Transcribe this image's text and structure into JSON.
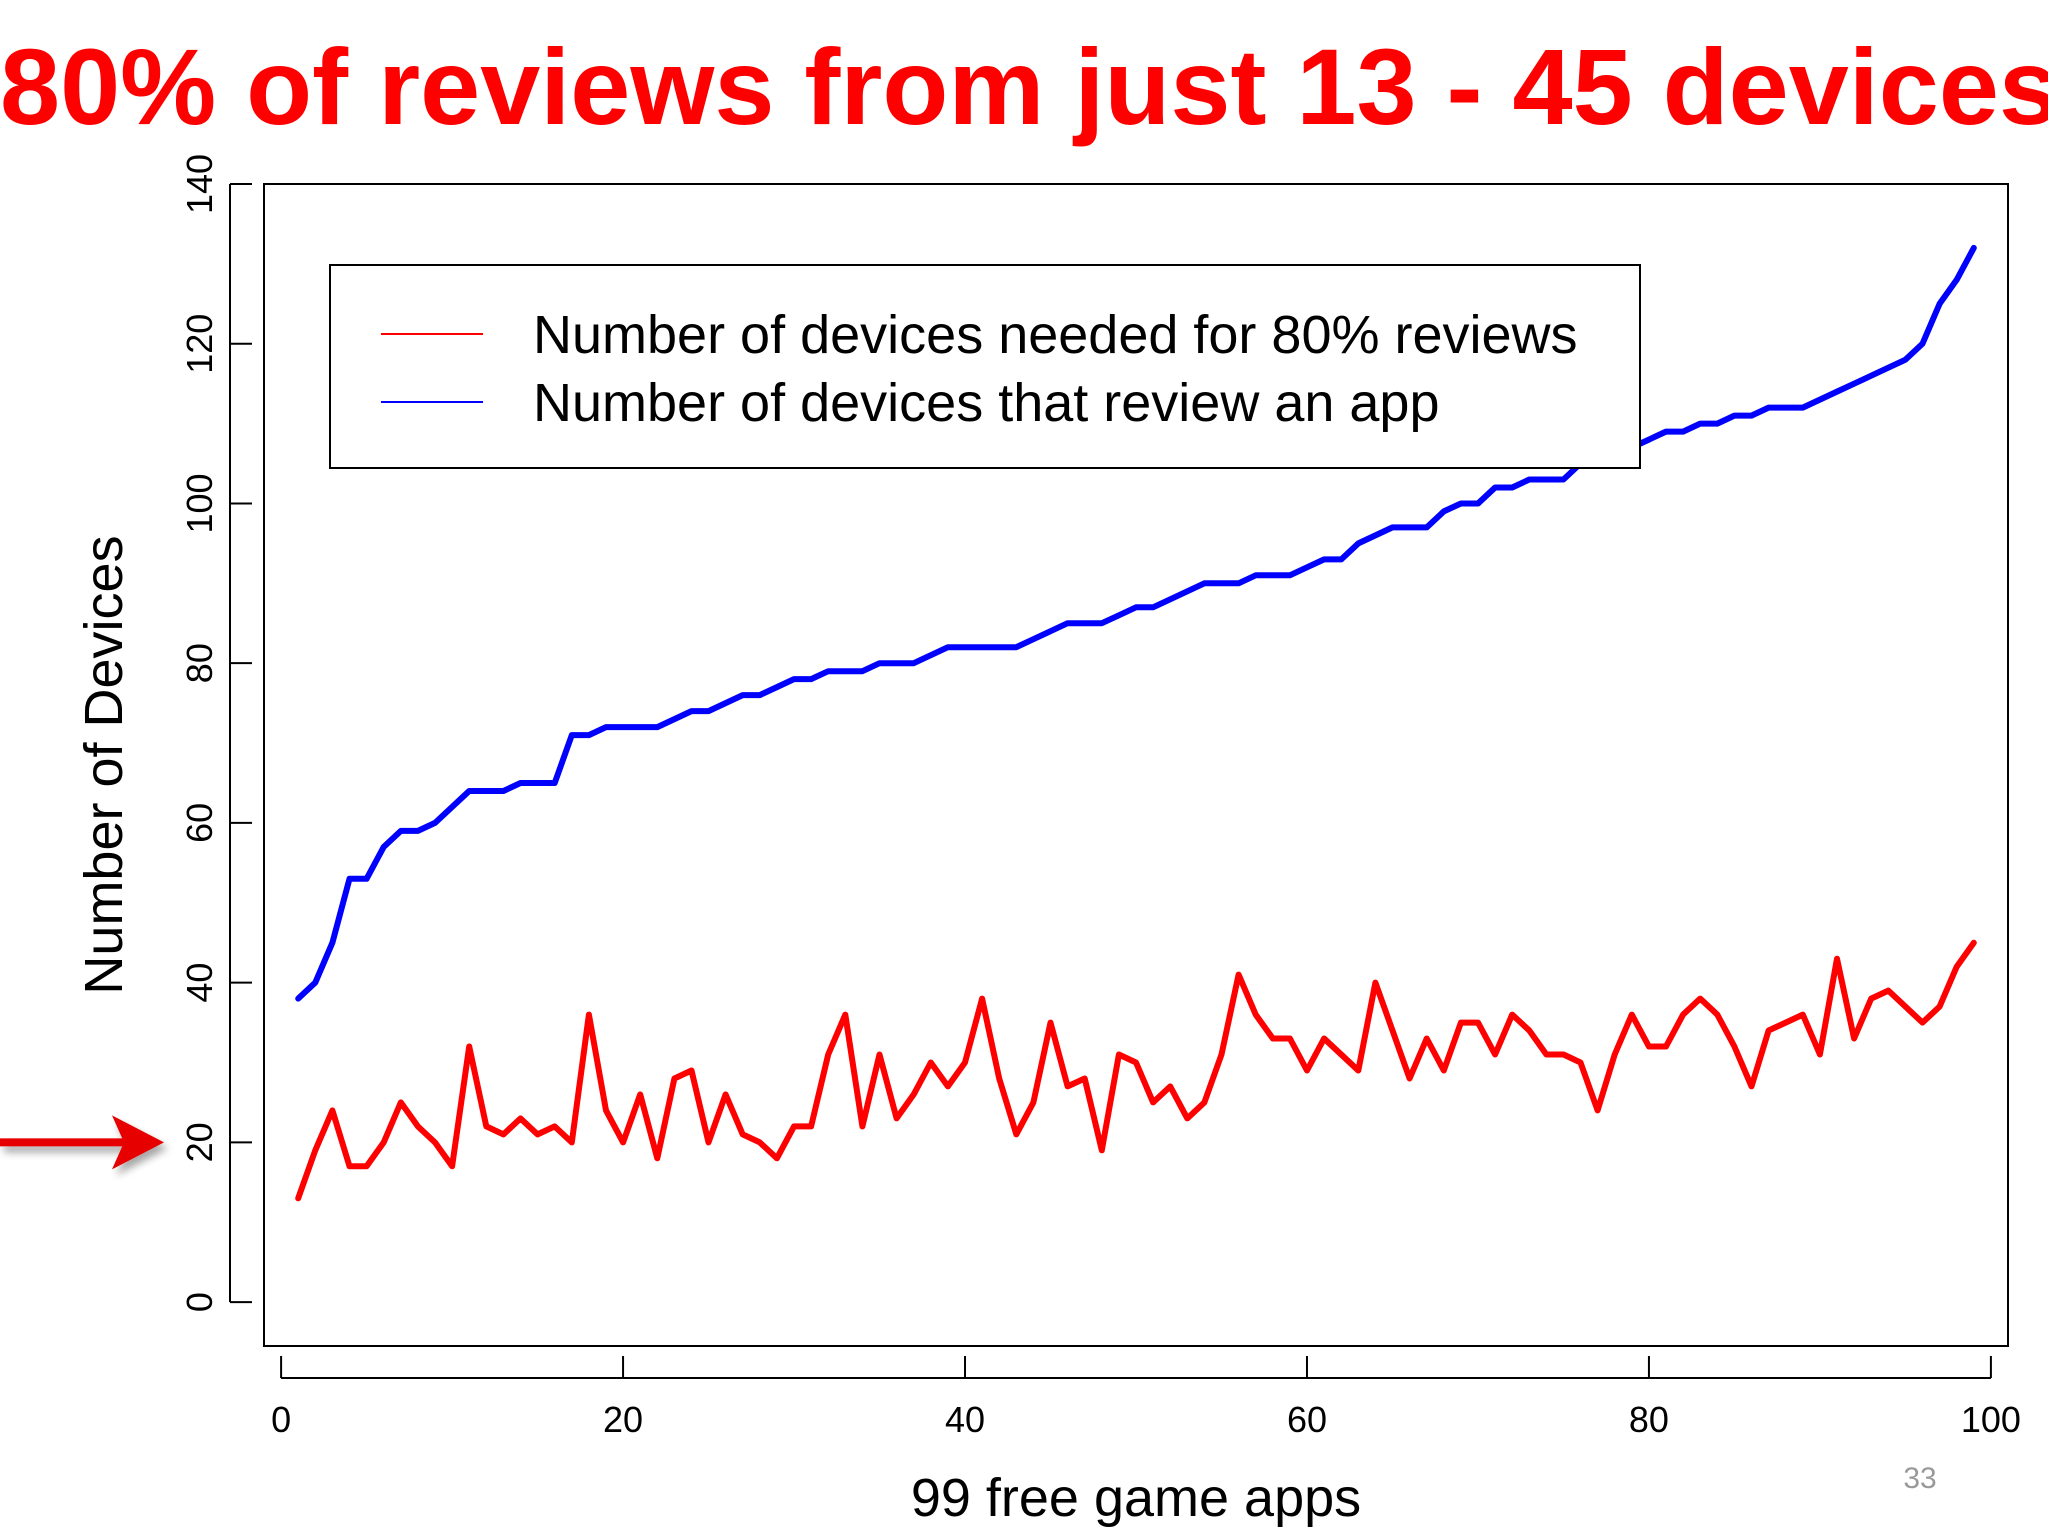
{
  "slide": {
    "title": "80% of reviews from just 13 - 45 devices",
    "title_color": "#ff0000",
    "page_number": "33",
    "arrow_color": "#e60000",
    "arrow_target_value": 20
  },
  "chart_data": {
    "type": "line",
    "xlabel": "99 free game apps",
    "ylabel": "Number of Devices",
    "xlim": [
      -1,
      101
    ],
    "ylim": [
      -5.5,
      140
    ],
    "x_ticks": [
      0,
      20,
      40,
      60,
      80,
      100
    ],
    "y_ticks": [
      0,
      20,
      40,
      60,
      80,
      100,
      120,
      140
    ],
    "legend_position": "top-left",
    "x": [
      1,
      2,
      3,
      4,
      5,
      6,
      7,
      8,
      9,
      10,
      11,
      12,
      13,
      14,
      15,
      16,
      17,
      18,
      19,
      20,
      21,
      22,
      23,
      24,
      25,
      26,
      27,
      28,
      29,
      30,
      31,
      32,
      33,
      34,
      35,
      36,
      37,
      38,
      39,
      40,
      41,
      42,
      43,
      44,
      45,
      46,
      47,
      48,
      49,
      50,
      51,
      52,
      53,
      54,
      55,
      56,
      57,
      58,
      59,
      60,
      61,
      62,
      63,
      64,
      65,
      66,
      67,
      68,
      69,
      70,
      71,
      72,
      73,
      74,
      75,
      76,
      77,
      78,
      79,
      80,
      81,
      82,
      83,
      84,
      85,
      86,
      87,
      88,
      89,
      90,
      91,
      92,
      93,
      94,
      95,
      96,
      97,
      98,
      99
    ],
    "series": [
      {
        "name": "Number of devices needed for 80% reviews",
        "color": "#ff0000",
        "values": [
          13,
          19,
          24,
          17,
          17,
          20,
          25,
          22,
          20,
          17,
          32,
          22,
          21,
          23,
          21,
          22,
          20,
          36,
          24,
          20,
          26,
          18,
          28,
          29,
          20,
          26,
          21,
          20,
          18,
          22,
          22,
          31,
          36,
          22,
          31,
          23,
          26,
          30,
          27,
          30,
          38,
          28,
          21,
          25,
          35,
          27,
          28,
          19,
          31,
          30,
          25,
          27,
          23,
          25,
          31,
          41,
          36,
          33,
          33,
          29,
          33,
          31,
          29,
          40,
          34,
          28,
          33,
          29,
          35,
          35,
          31,
          36,
          34,
          31,
          31,
          30,
          24,
          31,
          36,
          32,
          32,
          36,
          38,
          36,
          32,
          27,
          34,
          35,
          36,
          31,
          43,
          33,
          38,
          39,
          37,
          35,
          37,
          42,
          45
        ]
      },
      {
        "name": "Number of devices that review an app",
        "color": "#0000ff",
        "values": [
          38,
          40,
          45,
          53,
          53,
          57,
          59,
          59,
          60,
          62,
          64,
          64,
          64,
          65,
          65,
          65,
          71,
          71,
          72,
          72,
          72,
          72,
          73,
          74,
          74,
          75,
          76,
          76,
          77,
          78,
          78,
          79,
          79,
          79,
          80,
          80,
          80,
          81,
          82,
          82,
          82,
          82,
          82,
          83,
          84,
          85,
          85,
          85,
          86,
          87,
          87,
          88,
          89,
          90,
          90,
          90,
          91,
          91,
          91,
          92,
          93,
          93,
          95,
          96,
          97,
          97,
          97,
          99,
          100,
          100,
          102,
          102,
          103,
          103,
          103,
          105,
          105,
          106,
          107,
          108,
          109,
          109,
          110,
          110,
          111,
          111,
          112,
          112,
          112,
          113,
          114,
          115,
          116,
          117,
          118,
          120,
          125,
          128,
          132
        ]
      }
    ]
  }
}
